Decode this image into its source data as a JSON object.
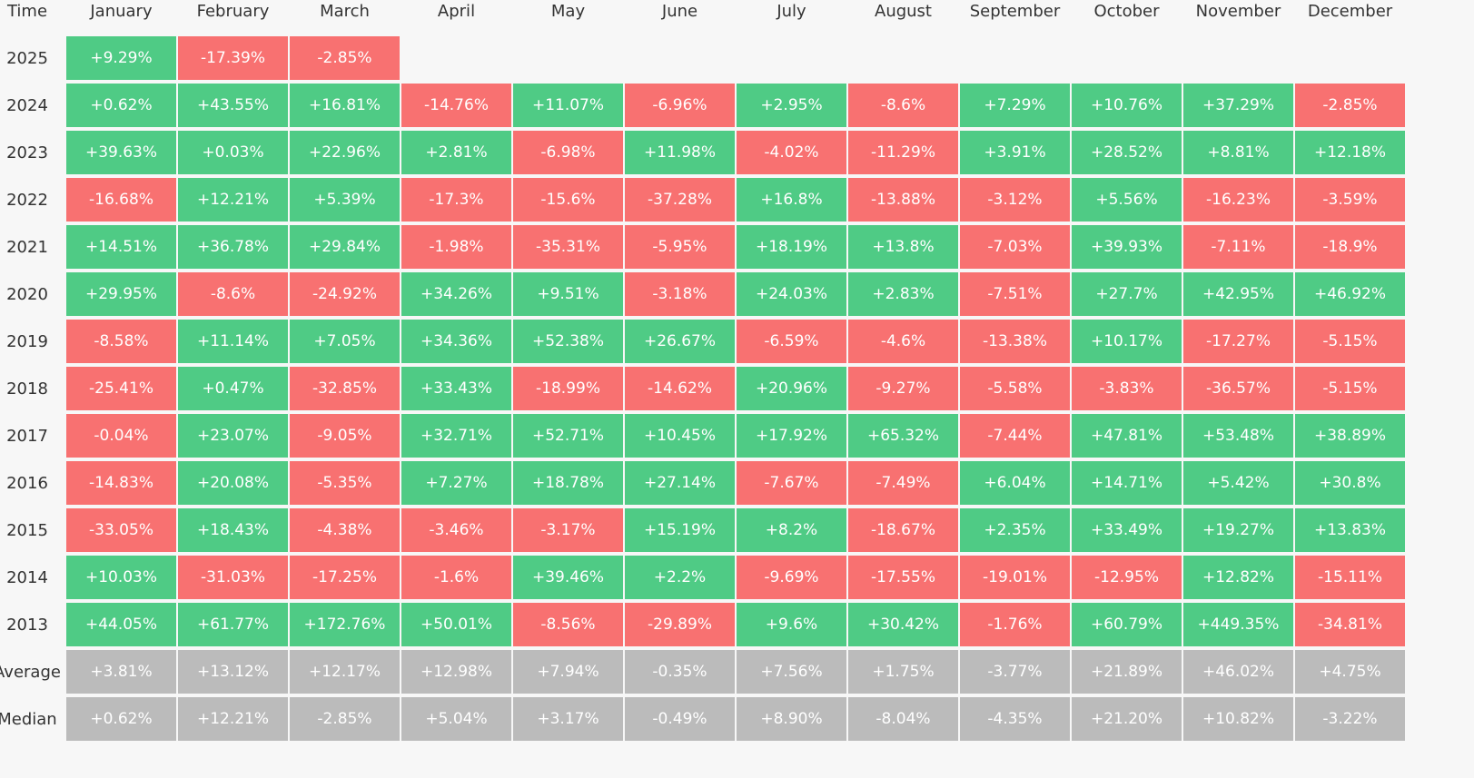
{
  "table": {
    "colors": {
      "up": "#4fcb85",
      "down": "#f87171",
      "summary": "#bbbbbb"
    },
    "header": [
      "Time",
      "January",
      "February",
      "March",
      "April",
      "May",
      "June",
      "July",
      "August",
      "September",
      "October",
      "November",
      "December"
    ],
    "rows": [
      {
        "label": "2025",
        "values": [
          "+9.29%",
          "-17.39%",
          "-2.85%"
        ]
      },
      {
        "label": "2024",
        "values": [
          "+0.62%",
          "+43.55%",
          "+16.81%",
          "-14.76%",
          "+11.07%",
          "-6.96%",
          "+2.95%",
          "-8.6%",
          "+7.29%",
          "+10.76%",
          "+37.29%",
          "-2.85%"
        ]
      },
      {
        "label": "2023",
        "values": [
          "+39.63%",
          "+0.03%",
          "+22.96%",
          "+2.81%",
          "-6.98%",
          "+11.98%",
          "-4.02%",
          "-11.29%",
          "+3.91%",
          "+28.52%",
          "+8.81%",
          "+12.18%"
        ]
      },
      {
        "label": "2022",
        "values": [
          "-16.68%",
          "+12.21%",
          "+5.39%",
          "-17.3%",
          "-15.6%",
          "-37.28%",
          "+16.8%",
          "-13.88%",
          "-3.12%",
          "+5.56%",
          "-16.23%",
          "-3.59%"
        ]
      },
      {
        "label": "2021",
        "values": [
          "+14.51%",
          "+36.78%",
          "+29.84%",
          "-1.98%",
          "-35.31%",
          "-5.95%",
          "+18.19%",
          "+13.8%",
          "-7.03%",
          "+39.93%",
          "-7.11%",
          "-18.9%"
        ]
      },
      {
        "label": "2020",
        "values": [
          "+29.95%",
          "-8.6%",
          "-24.92%",
          "+34.26%",
          "+9.51%",
          "-3.18%",
          "+24.03%",
          "+2.83%",
          "-7.51%",
          "+27.7%",
          "+42.95%",
          "+46.92%"
        ]
      },
      {
        "label": "2019",
        "values": [
          "-8.58%",
          "+11.14%",
          "+7.05%",
          "+34.36%",
          "+52.38%",
          "+26.67%",
          "-6.59%",
          "-4.6%",
          "-13.38%",
          "+10.17%",
          "-17.27%",
          "-5.15%"
        ]
      },
      {
        "label": "2018",
        "values": [
          "-25.41%",
          "+0.47%",
          "-32.85%",
          "+33.43%",
          "-18.99%",
          "-14.62%",
          "+20.96%",
          "-9.27%",
          "-5.58%",
          "-3.83%",
          "-36.57%",
          "-5.15%"
        ]
      },
      {
        "label": "2017",
        "values": [
          "-0.04%",
          "+23.07%",
          "-9.05%",
          "+32.71%",
          "+52.71%",
          "+10.45%",
          "+17.92%",
          "+65.32%",
          "-7.44%",
          "+47.81%",
          "+53.48%",
          "+38.89%"
        ]
      },
      {
        "label": "2016",
        "values": [
          "-14.83%",
          "+20.08%",
          "-5.35%",
          "+7.27%",
          "+18.78%",
          "+27.14%",
          "-7.67%",
          "-7.49%",
          "+6.04%",
          "+14.71%",
          "+5.42%",
          "+30.8%"
        ]
      },
      {
        "label": "2015",
        "values": [
          "-33.05%",
          "+18.43%",
          "-4.38%",
          "-3.46%",
          "-3.17%",
          "+15.19%",
          "+8.2%",
          "-18.67%",
          "+2.35%",
          "+33.49%",
          "+19.27%",
          "+13.83%"
        ]
      },
      {
        "label": "2014",
        "values": [
          "+10.03%",
          "-31.03%",
          "-17.25%",
          "-1.6%",
          "+39.46%",
          "+2.2%",
          "-9.69%",
          "-17.55%",
          "-19.01%",
          "-12.95%",
          "+12.82%",
          "-15.11%"
        ]
      },
      {
        "label": "2013",
        "values": [
          "+44.05%",
          "+61.77%",
          "+172.76%",
          "+50.01%",
          "-8.56%",
          "-29.89%",
          "+9.6%",
          "+30.42%",
          "-1.76%",
          "+60.79%",
          "+449.35%",
          "-34.81%"
        ]
      }
    ],
    "summary": [
      {
        "label": "Average",
        "values": [
          "+3.81%",
          "+13.12%",
          "+12.17%",
          "+12.98%",
          "+7.94%",
          "-0.35%",
          "+7.56%",
          "+1.75%",
          "-3.77%",
          "+21.89%",
          "+46.02%",
          "+4.75%"
        ]
      },
      {
        "label": "Median",
        "values": [
          "+0.62%",
          "+12.21%",
          "-2.85%",
          "+5.04%",
          "+3.17%",
          "-0.49%",
          "+8.90%",
          "-8.04%",
          "-4.35%",
          "+21.20%",
          "+10.82%",
          "-3.22%"
        ]
      }
    ]
  }
}
